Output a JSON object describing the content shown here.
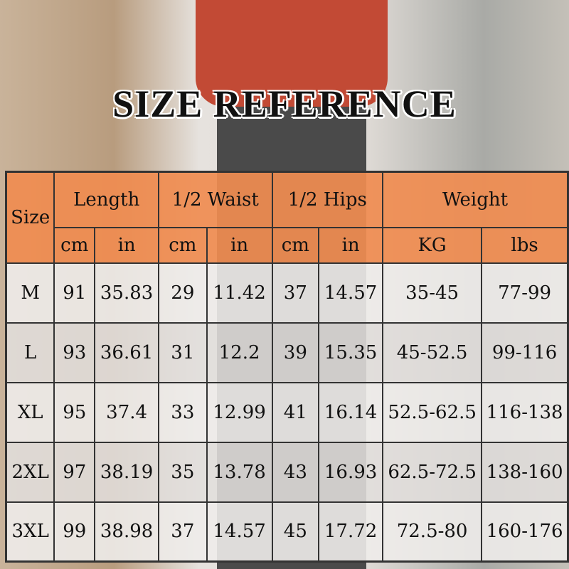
{
  "title": "SIZE REFERENCE",
  "header": {
    "size": "Size",
    "groups": [
      "Length",
      "1/2 Waist",
      "1/2 Hips",
      "Weight"
    ],
    "units": [
      "cm",
      "in",
      "cm",
      "in",
      "cm",
      "in",
      "KG",
      "lbs"
    ]
  },
  "rows": [
    [
      "M",
      "91",
      "35.83",
      "29",
      "11.42",
      "37",
      "14.57",
      "35-45",
      "77-99"
    ],
    [
      "L",
      "93",
      "36.61",
      "31",
      "12.2",
      "39",
      "15.35",
      "45-52.5",
      "99-116"
    ],
    [
      "XL",
      "95",
      "37.4",
      "33",
      "12.99",
      "41",
      "16.14",
      "52.5-62.5",
      "116-138"
    ],
    [
      "2XL",
      "97",
      "38.19",
      "35",
      "13.78",
      "43",
      "16.93",
      "62.5-72.5",
      "138-160"
    ],
    [
      "3XL",
      "99",
      "38.98",
      "37",
      "14.57",
      "45",
      "17.72",
      "72.5-80",
      "160-176"
    ]
  ],
  "colors": {
    "header": "#f08c50",
    "border": "#333333"
  }
}
